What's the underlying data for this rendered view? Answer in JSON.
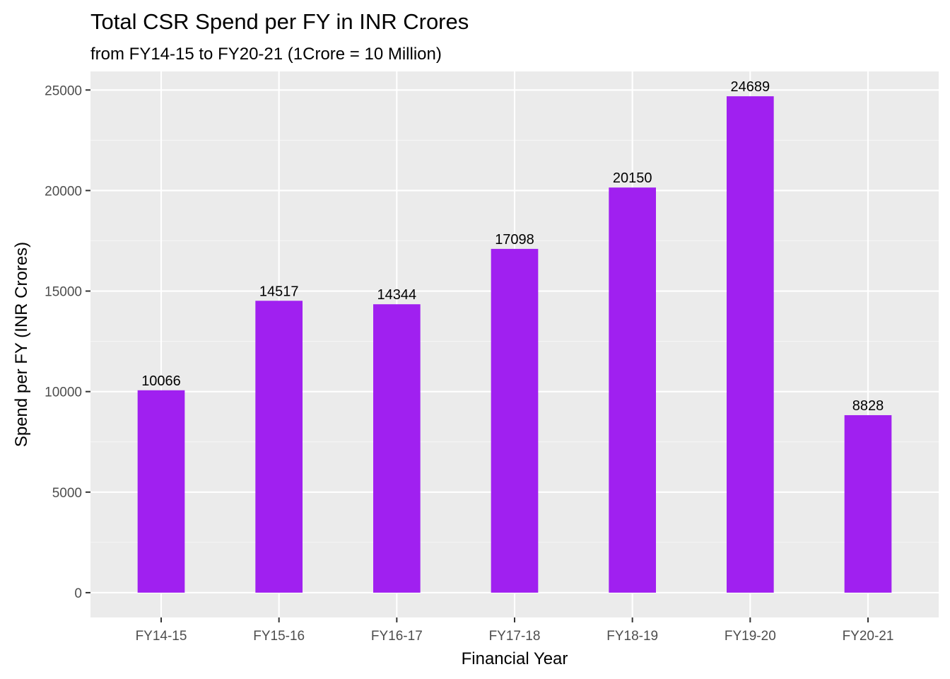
{
  "chart_data": {
    "type": "bar",
    "title": "Total CSR Spend per FY in INR Crores",
    "subtitle": "from FY14-15 to FY20-21 (1Crore = 10 Million)",
    "xlabel": "Financial Year",
    "ylabel": "Spend per FY (INR Crores)",
    "categories": [
      "FY14-15",
      "FY15-16",
      "FY16-17",
      "FY17-18",
      "FY18-19",
      "FY19-20",
      "FY20-21"
    ],
    "values": [
      10066,
      14517,
      14344,
      17098,
      20150,
      24689,
      8828
    ],
    "data_labels": [
      "10066",
      "14517",
      "14344",
      "17098",
      "20150",
      "24689",
      "8828"
    ],
    "ylim": [
      -1234,
      25924
    ],
    "yticks": [
      0,
      5000,
      10000,
      15000,
      20000,
      25000
    ],
    "ytick_labels": [
      "0",
      "5000",
      "10000",
      "15000",
      "20000",
      "25000"
    ],
    "grid": true,
    "legend": "none",
    "colors": {
      "bar": "#A020F0",
      "panel_background": "#EBEBEB",
      "grid_major": "#FFFFFF",
      "grid_minor": "#F5F5F5",
      "tick_text": "#4D4D4D"
    }
  }
}
